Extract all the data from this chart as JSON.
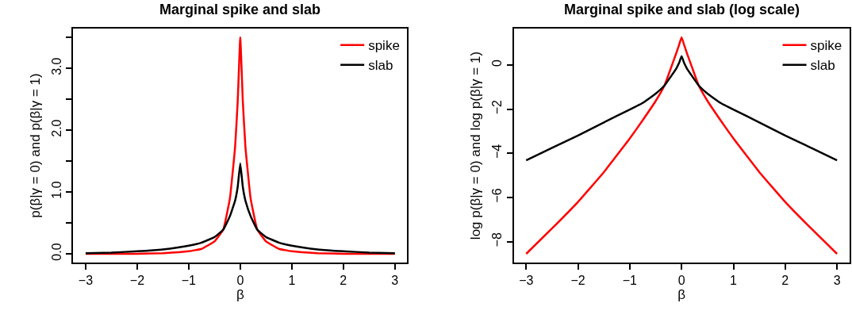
{
  "chart_data": [
    {
      "type": "line",
      "title": "Marginal spike and slab",
      "xlabel": "β",
      "ylabel": "p(β|γ = 0) and p(β|γ = 1)",
      "x": [
        -3,
        -2.5,
        -2,
        -1.5,
        -1,
        -0.75,
        -0.5,
        -0.33,
        -0.2,
        -0.1,
        -0.05,
        0,
        0.05,
        0.1,
        0.2,
        0.33,
        0.5,
        0.75,
        1,
        1.5,
        2,
        2.5,
        3
      ],
      "series": [
        {
          "name": "spike",
          "color": "#ff0000",
          "values": [
            0.0,
            0.0,
            0.0,
            0.01,
            0.04,
            0.08,
            0.2,
            0.39,
            0.9,
            1.73,
            2.46,
            3.5,
            2.46,
            1.73,
            0.9,
            0.39,
            0.2,
            0.08,
            0.04,
            0.01,
            0.0,
            0.0,
            0.0
          ]
        },
        {
          "name": "slab",
          "color": "#000000",
          "values": [
            0.01,
            0.02,
            0.04,
            0.07,
            0.13,
            0.18,
            0.27,
            0.39,
            0.61,
            0.86,
            1.08,
            1.46,
            1.08,
            0.86,
            0.61,
            0.39,
            0.27,
            0.18,
            0.13,
            0.07,
            0.04,
            0.02,
            0.01
          ]
        }
      ],
      "xlim": [
        -3.24,
        3.24
      ],
      "ylim": [
        -0.14,
        3.64
      ],
      "xticks": [
        {
          "value": -3,
          "label": "−3"
        },
        {
          "value": -2,
          "label": "−2"
        },
        {
          "value": -1,
          "label": "−1"
        },
        0,
        1,
        2,
        3
      ],
      "yticks": [
        {
          "value": 0,
          "label": "0.0"
        },
        {
          "value": 0.5,
          "label": null
        },
        {
          "value": 1,
          "label": "1.0"
        },
        {
          "value": 1.5,
          "label": null
        },
        {
          "value": 2,
          "label": "2.0"
        },
        {
          "value": 2.5,
          "label": null
        },
        {
          "value": 3,
          "label": "3.0"
        },
        {
          "value": 3.5,
          "label": null
        }
      ],
      "legend": "top right"
    },
    {
      "type": "line",
      "title": "Marginal spike and slab (log scale)",
      "xlabel": "β",
      "ylabel": "log p(β|γ = 0) and log p(β|γ = 1)",
      "x": [
        -3,
        -2.5,
        -2,
        -1.5,
        -1,
        -0.75,
        -0.5,
        -0.33,
        -0.2,
        -0.1,
        -0.05,
        0,
        0.05,
        0.1,
        0.2,
        0.33,
        0.5,
        0.75,
        1,
        1.5,
        2,
        2.5,
        3
      ],
      "series": [
        {
          "name": "spike",
          "color": "#ff0000",
          "values": [
            -8.55,
            -7.4,
            -6.2,
            -4.85,
            -3.33,
            -2.5,
            -1.63,
            -0.93,
            -0.1,
            0.55,
            0.9,
            1.25,
            0.9,
            0.55,
            -0.1,
            -0.93,
            -1.63,
            -2.5,
            -3.33,
            -4.85,
            -6.2,
            -7.4,
            -8.55
          ]
        },
        {
          "name": "slab",
          "color": "#000000",
          "values": [
            -4.32,
            -3.75,
            -3.2,
            -2.6,
            -2.02,
            -1.72,
            -1.3,
            -0.93,
            -0.5,
            -0.15,
            0.08,
            0.4,
            0.08,
            -0.15,
            -0.5,
            -0.93,
            -1.3,
            -1.72,
            -2.02,
            -2.6,
            -3.2,
            -3.75,
            -4.32
          ]
        }
      ],
      "xlim": [
        -3.24,
        3.24
      ],
      "ylim": [
        -8.94,
        1.64
      ],
      "xticks": [
        {
          "value": -3,
          "label": "−3"
        },
        {
          "value": -2,
          "label": "−2"
        },
        {
          "value": -1,
          "label": "−1"
        },
        0,
        1,
        2,
        3
      ],
      "yticks": [
        {
          "value": -8,
          "label": "−8"
        },
        {
          "value": -6,
          "label": "−6"
        },
        {
          "value": -4,
          "label": "−4"
        },
        {
          "value": -2,
          "label": "−2"
        },
        0
      ],
      "legend": "top right"
    }
  ]
}
